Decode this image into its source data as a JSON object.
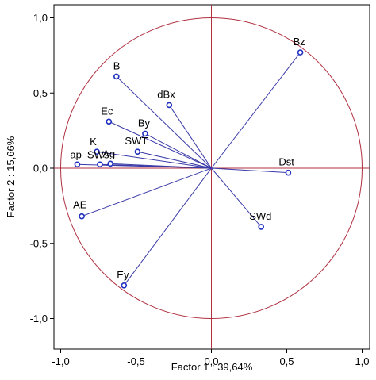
{
  "colors": {
    "frame": "#000000",
    "circle": "#b03040",
    "axes": "#b03040",
    "vector": "#3a3aa8",
    "point_fill": "#ffffff",
    "point_stroke": "#1f2fbf",
    "text": "#000000"
  },
  "chart_data": {
    "type": "scatter",
    "title": "",
    "xlabel": "Factor 1 : 39,64%",
    "ylabel": "Factor 2 : 15,66%",
    "xlim": [
      -1.0,
      1.0
    ],
    "ylim": [
      -1.0,
      1.0
    ],
    "x_ticks": [
      -1.0,
      -0.5,
      0.0,
      0.5,
      1.0
    ],
    "y_ticks": [
      -1.0,
      -0.5,
      0.0,
      0.5,
      1.0
    ],
    "x_tick_labels": [
      "-1,0",
      "-0,5",
      "0,0",
      "0,5",
      "1,0"
    ],
    "y_tick_labels": [
      "-1,0",
      "-0,5",
      "0,0",
      "0,5",
      "1,0"
    ],
    "unit_circle": true,
    "grid": false,
    "legend": "none",
    "points": [
      {
        "label": "Bz",
        "x": 0.59,
        "y": 0.77
      },
      {
        "label": "B",
        "x": -0.63,
        "y": 0.61
      },
      {
        "label": "dBx",
        "x": -0.28,
        "y": 0.42
      },
      {
        "label": "Ec",
        "x": -0.68,
        "y": 0.31
      },
      {
        "label": "By",
        "x": -0.44,
        "y": 0.23
      },
      {
        "label": "SWT",
        "x": -0.49,
        "y": 0.11
      },
      {
        "label": "K",
        "x": -0.76,
        "y": 0.11
      },
      {
        "label": "ap",
        "x": -0.89,
        "y": 0.025
      },
      {
        "label": "SWs",
        "x": -0.74,
        "y": 0.025
      },
      {
        "label": "Ag",
        "x": -0.67,
        "y": 0.03
      },
      {
        "label": "Dst",
        "x": 0.51,
        "y": -0.03
      },
      {
        "label": "AE",
        "x": -0.86,
        "y": -0.32
      },
      {
        "label": "SWd",
        "x": 0.33,
        "y": -0.39
      },
      {
        "label": "Ey",
        "x": -0.58,
        "y": -0.78
      }
    ]
  }
}
